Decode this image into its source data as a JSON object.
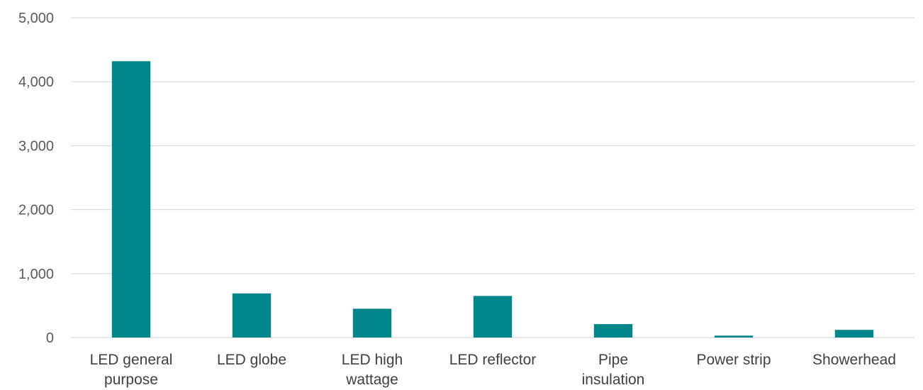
{
  "chart_data": {
    "type": "bar",
    "title": "",
    "xlabel": "",
    "ylabel": "",
    "ylim": [
      0,
      5000
    ],
    "yticks": [
      0,
      1000,
      2000,
      3000,
      4000,
      5000
    ],
    "ytick_labels": [
      "0",
      "1,000",
      "2,000",
      "3,000",
      "4,000",
      "5,000"
    ],
    "grid": true,
    "legend": "none",
    "bar_color": "#00868b",
    "categories": [
      [
        "LED general",
        "purpose"
      ],
      [
        "LED globe"
      ],
      [
        "LED high",
        "wattage"
      ],
      [
        "LED reflector"
      ],
      [
        "Pipe",
        "insulation"
      ],
      [
        "Power strip"
      ],
      [
        "Showerhead"
      ]
    ],
    "values": [
      4320,
      690,
      450,
      650,
      210,
      30,
      120
    ]
  }
}
